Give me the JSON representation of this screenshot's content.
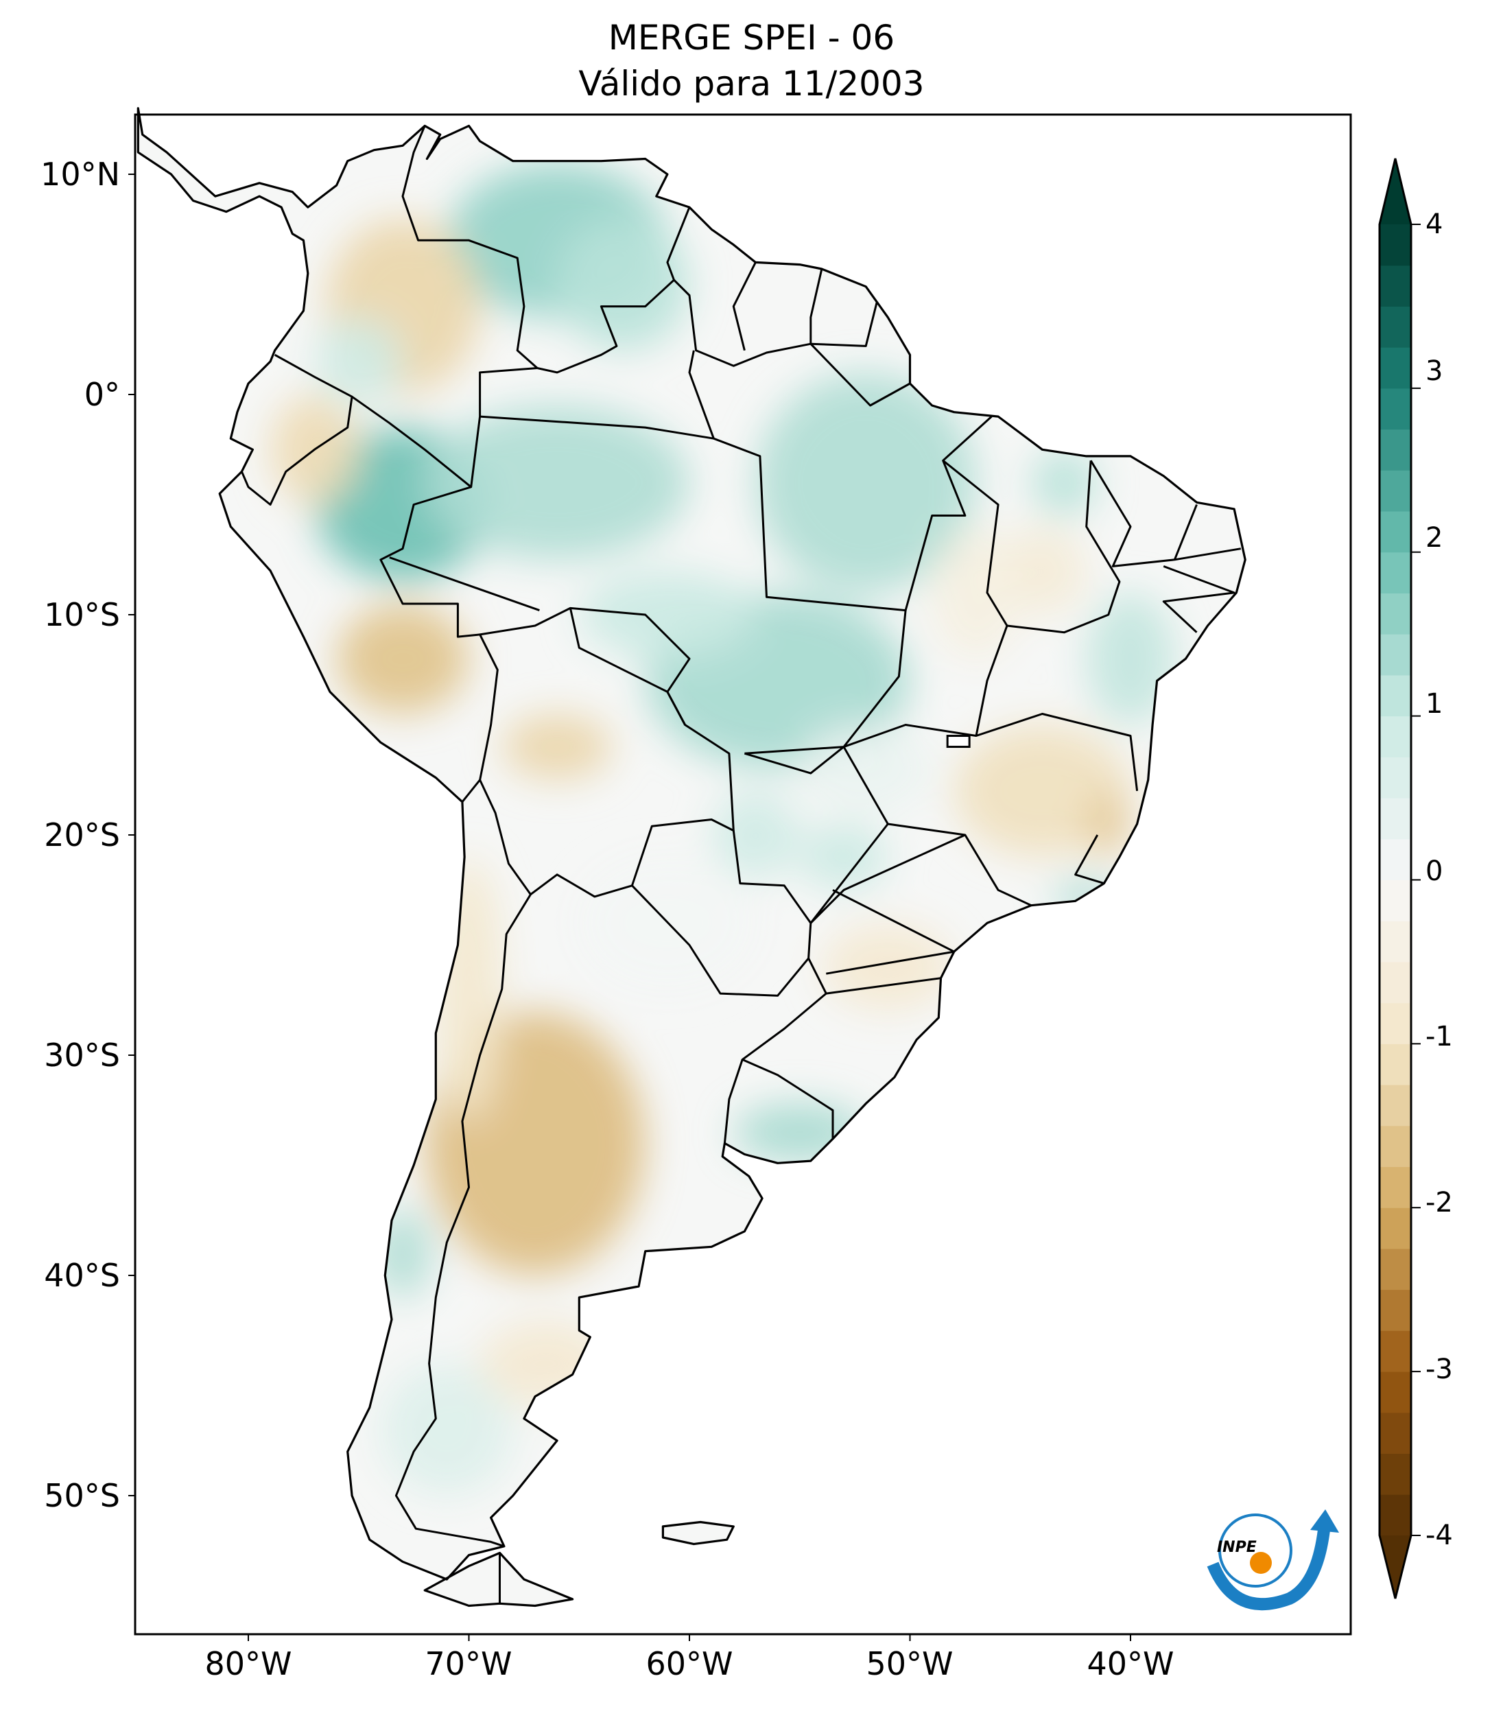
{
  "title": "MERGE   SPEI - 06",
  "subtitle": "Válido para 11/2003",
  "map": {
    "projection": "PlateCarree",
    "extent_lon": [
      -85,
      -30
    ],
    "extent_lat": [
      -56,
      13
    ],
    "lat_ticks": [
      "10°N",
      "0°",
      "10°S",
      "20°S",
      "30°S",
      "40°S",
      "50°S"
    ],
    "lat_values": [
      10,
      0,
      -10,
      -20,
      -30,
      -40,
      -50
    ],
    "lon_ticks": [
      "80°W",
      "70°W",
      "60°W",
      "50°W",
      "40°W"
    ],
    "lon_values": [
      -80,
      -70,
      -60,
      -50,
      -40
    ],
    "variable": "SPEI - 06",
    "logo_text": "INPE"
  },
  "colorbar": {
    "colormap": "BrBG",
    "range": [
      -4,
      4
    ],
    "extend": "both",
    "ticks": [
      "4",
      "3",
      "2",
      "1",
      "0",
      "-1",
      "-2",
      "-3",
      "-4"
    ],
    "tick_values": [
      4,
      3,
      2,
      1,
      0,
      -1,
      -2,
      -3,
      -4
    ],
    "colors": [
      "#543005",
      "#9a5a13",
      "#d4ac63",
      "#f3e6c8",
      "#f7f7f7",
      "#cbeae3",
      "#6cc0b2",
      "#1c7f74",
      "#003c30"
    ]
  }
}
